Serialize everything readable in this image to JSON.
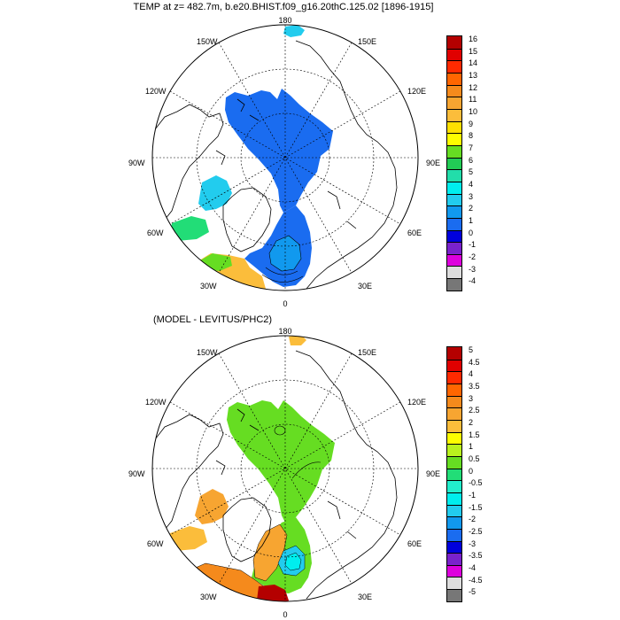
{
  "title": "TEMP at z= 482.7m, b.e20.BHIST.f09_g16.20thC.125.02 [1896-1915]",
  "subtitle": "(MODEL - LEVITUS/PHC2)",
  "longitude_labels": [
    "180",
    "150E",
    "120E",
    "90E",
    "60E",
    "30E",
    "0",
    "30W",
    "60W",
    "90W",
    "120W",
    "150W"
  ],
  "top_colorbar": {
    "labels": [
      "16",
      "15",
      "14",
      "13",
      "12",
      "11",
      "10",
      "9",
      "8",
      "7",
      "6",
      "5",
      "4",
      "3",
      "2",
      "1",
      "0",
      "-1",
      "-2",
      "-3",
      "-4"
    ],
    "colors": [
      "#b40000",
      "#e00000",
      "#ff2a00",
      "#ff6600",
      "#f58a1c",
      "#f7a531",
      "#fbbd3b",
      "#ffe000",
      "#fdfd00",
      "#66dd22",
      "#22cc55",
      "#22ddaa",
      "#00eeee",
      "#22ccee",
      "#1199ee",
      "#1a6cf0",
      "#0000dd",
      "#7a22cc",
      "#dd00dd",
      "#dddddd",
      "#777777"
    ]
  },
  "bottom_colorbar": {
    "labels": [
      "5",
      "4.5",
      "4",
      "3.5",
      "3",
      "2.5",
      "2",
      "1.5",
      "1",
      "0.5",
      "0",
      "-0.5",
      "-1",
      "-1.5",
      "-2",
      "-2.5",
      "-3",
      "-3.5",
      "-4",
      "-4.5",
      "-5"
    ],
    "colors": [
      "#b40000",
      "#e00000",
      "#ff2a00",
      "#ff6600",
      "#f58a1c",
      "#f7a531",
      "#fbbd3b",
      "#fdfd00",
      "#b9f21e",
      "#66dd22",
      "#22dd77",
      "#22eecc",
      "#00eeee",
      "#22ccee",
      "#1199ee",
      "#1a6cf0",
      "#0000dd",
      "#7a22cc",
      "#dd00dd",
      "#dddddd",
      "#777777"
    ]
  },
  "colors": {
    "top_field_main": "#1a6cf0",
    "top_field_light": "#1199ee",
    "bottom_field_main": "#66dd22",
    "bottom_field_warm": "#f7a531",
    "bottom_field_hot": "#b40000"
  }
}
